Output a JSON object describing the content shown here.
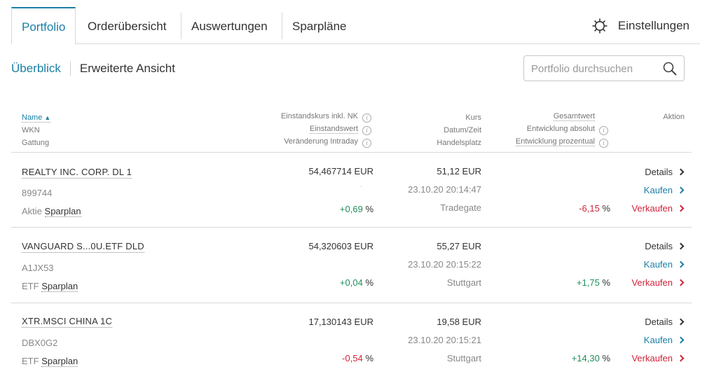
{
  "tabs": [
    {
      "label": "Portfolio",
      "active": true
    },
    {
      "label": "Orderübersicht",
      "active": false
    },
    {
      "label": "Auswertungen",
      "active": false
    },
    {
      "label": "Sparpläne",
      "active": false
    }
  ],
  "settings": {
    "label": "Einstellungen",
    "icon": "gear-icon"
  },
  "subnav": {
    "overview": "Überblick",
    "extended": "Erweiterte Ansicht"
  },
  "search": {
    "placeholder": "Portfolio durchsuchen",
    "value": "",
    "icon": "search-icon"
  },
  "columns": {
    "name": "Name",
    "sort_indicator": "▲",
    "wkn": "WKN",
    "gattung": "Gattung",
    "einstandskurs": "Einstandskurs inkl. NK",
    "einstandswert": "Einstandswert",
    "intraday": "Veränderung Intraday",
    "kurs": "Kurs",
    "datum": "Datum/Zeit",
    "handelsplatz": "Handelsplatz",
    "gesamtwert": "Gesamtwert",
    "entw_abs": "Entwicklung absolut",
    "entw_pct": "Entwicklung prozentual",
    "aktion": "Aktion",
    "info_glyph": "i"
  },
  "actions": {
    "details": "Details",
    "kaufen": "Kaufen",
    "verkaufen": "Verkaufen"
  },
  "colors": {
    "accent": "#1a7fa6",
    "positive": "#1e8f5a",
    "negative": "#d0243a"
  },
  "rows": [
    {
      "name": "REALTY INC. CORP. DL 1",
      "wkn": "899744",
      "gattung": "Aktie",
      "sparplan": "Sparplan",
      "einstandskurs": "54,467714 EUR",
      "intraday": "+0,69",
      "intraday_sign": "pos",
      "kurs": "51,12 EUR",
      "datum": "23.10.20 20:14:47",
      "handelsplatz": "Tradegate",
      "entwicklung": "-6,15",
      "entwicklung_sign": "neg",
      "pct": "%"
    },
    {
      "name": "VANGUARD S...0U.ETF DLD",
      "wkn": "A1JX53",
      "gattung": "ETF",
      "sparplan": "Sparplan",
      "einstandskurs": "54,320603 EUR",
      "intraday": "+0,04",
      "intraday_sign": "pos",
      "kurs": "55,27 EUR",
      "datum": "23.10.20 20:15:22",
      "handelsplatz": "Stuttgart",
      "entwicklung": "+1,75",
      "entwicklung_sign": "pos",
      "pct": "%"
    },
    {
      "name": "XTR.MSCI CHINA 1C",
      "wkn": "DBX0G2",
      "gattung": "ETF",
      "sparplan": "Sparplan",
      "einstandskurs": "17,130143 EUR",
      "intraday": "-0,54",
      "intraday_sign": "neg",
      "kurs": "19,58 EUR",
      "datum": "23.10.20 20:15:21",
      "handelsplatz": "Stuttgart",
      "entwicklung": "+14,30",
      "entwicklung_sign": "pos",
      "pct": "%"
    }
  ]
}
